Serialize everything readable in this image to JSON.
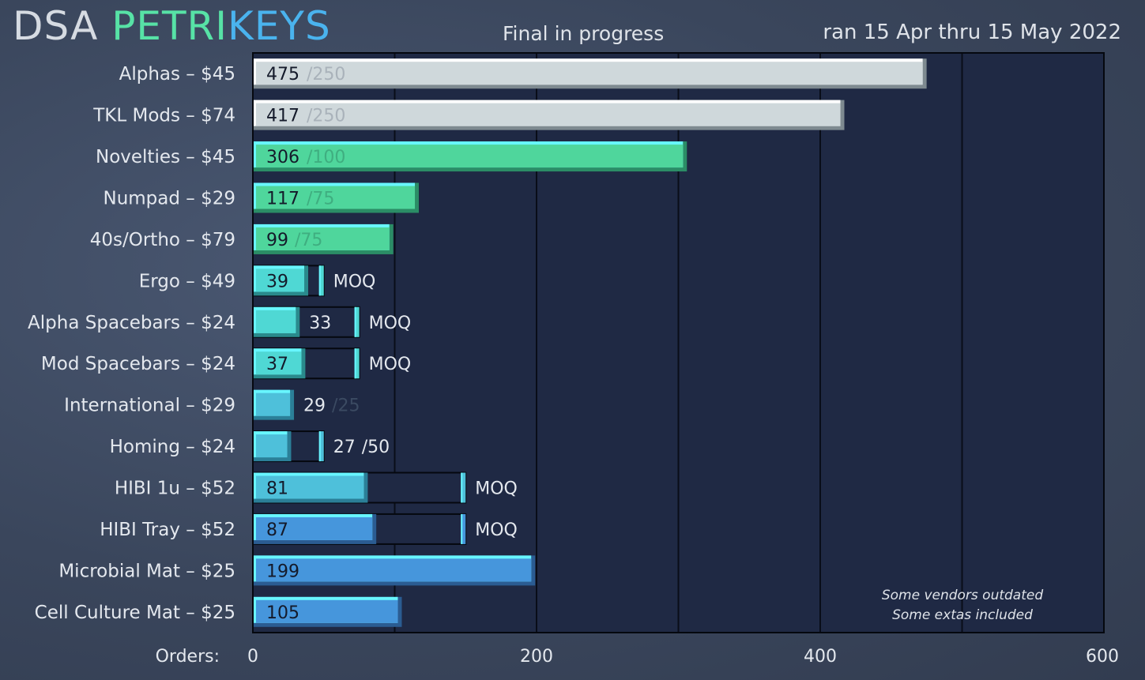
{
  "header": {
    "title_part1": "DSA ",
    "title_part2": "PETRI",
    "title_part3": "KEYS",
    "status": "Final in progress",
    "date_range": "ran 15 Apr thru 15 May 2022"
  },
  "chart_data": {
    "type": "bar",
    "orientation": "horizontal",
    "xlabel": "Orders:",
    "xlim": [
      0,
      600
    ],
    "xticks": [
      0,
      200,
      400,
      600
    ],
    "grid": true,
    "notes": [
      "Some vendors outdated",
      "Some extas included"
    ],
    "categories": [
      {
        "label": "Alphas – $45",
        "orders": 475,
        "moq": 250,
        "moq_label": "/250",
        "style": "white",
        "inside": true,
        "moq_text": ""
      },
      {
        "label": "TKL Mods – $74",
        "orders": 417,
        "moq": 250,
        "moq_label": "/250",
        "style": "white",
        "inside": true,
        "moq_text": ""
      },
      {
        "label": "Novelties – $45",
        "orders": 306,
        "moq": 100,
        "moq_label": "/100",
        "style": "green",
        "inside": true,
        "moq_text": ""
      },
      {
        "label": "Numpad – $29",
        "orders": 117,
        "moq": 75,
        "moq_label": "/75",
        "style": "green",
        "inside": true,
        "moq_text": ""
      },
      {
        "label": "40s/Ortho – $79",
        "orders": 99,
        "moq": 75,
        "moq_label": "/75",
        "style": "green",
        "inside": true,
        "moq_text": ""
      },
      {
        "label": "Ergo – $49",
        "orders": 39,
        "moq": 50,
        "moq_label": "",
        "style": "teal",
        "inside": true,
        "moq_text": "MOQ"
      },
      {
        "label": "Alpha Spacebars – $24",
        "orders": 33,
        "moq": 75,
        "moq_label": "",
        "style": "teal",
        "inside": false,
        "moq_text": "MOQ"
      },
      {
        "label": "Mod Spacebars – $24",
        "orders": 37,
        "moq": 75,
        "moq_label": "",
        "style": "teal",
        "inside": true,
        "moq_text": "MOQ"
      },
      {
        "label": "International – $29",
        "orders": 29,
        "moq": 25,
        "moq_label": "/25",
        "style": "cyan",
        "inside": false,
        "moq_text": ""
      },
      {
        "label": "Homing – $24",
        "orders": 27,
        "moq": 50,
        "moq_label": "/50",
        "style": "cyan",
        "inside": false,
        "moq_text": ""
      },
      {
        "label": "HIBI 1u – $52",
        "orders": 81,
        "moq": 150,
        "moq_label": "",
        "style": "cyan",
        "inside": true,
        "moq_text": "MOQ"
      },
      {
        "label": "HIBI Tray – $52",
        "orders": 87,
        "moq": 150,
        "moq_label": "",
        "style": "blue",
        "inside": true,
        "moq_text": "MOQ"
      },
      {
        "label": "Microbial Mat – $25",
        "orders": 199,
        "moq": null,
        "moq_label": "",
        "style": "blue",
        "inside": true,
        "moq_text": ""
      },
      {
        "label": "Cell Culture Mat – $25",
        "orders": 105,
        "moq": null,
        "moq_label": "",
        "style": "blue",
        "inside": true,
        "moq_text": ""
      }
    ]
  }
}
